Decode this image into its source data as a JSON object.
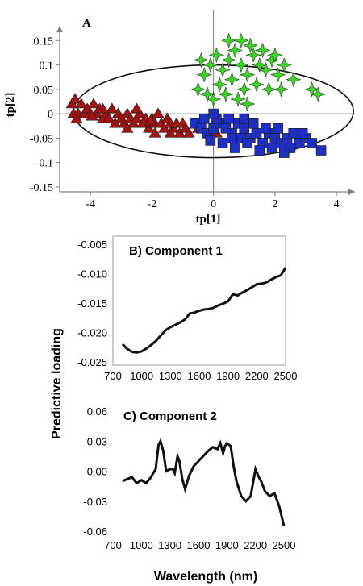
{
  "colors": {
    "class_triangle": "#a01414",
    "class_square": "#1f2fc0",
    "class_star": "#3fcf2a",
    "marker_edge": "#1a1a1a",
    "line": "#111111",
    "axis": "#808080"
  },
  "chart_data": [
    {
      "type": "scatter",
      "panel_label": "A",
      "xlabel": "tp[1]",
      "ylabel": "tp[2]",
      "xlim": [
        -5,
        4.6
      ],
      "ylim": [
        -0.16,
        0.2
      ],
      "x_ticks": [
        "-4",
        "-2",
        "0",
        "2",
        "4"
      ],
      "y_ticks": [
        "0.15",
        "0.1",
        "0.05",
        "0",
        "-0.05",
        "-0.1",
        "-0.15"
      ],
      "grid": false,
      "axes_through_origin": true,
      "confidence_ellipse": {
        "center": [
          0,
          0.005
        ],
        "semi_x": 4.55,
        "semi_y": 0.095
      },
      "series": [
        {
          "marker": "triangle",
          "color": "#a01414",
          "points": [
            [
              -4.6,
              0.02
            ],
            [
              -4.55,
              0.0
            ],
            [
              -4.5,
              0.03
            ],
            [
              -4.45,
              -0.01
            ],
            [
              -4.4,
              0.0
            ],
            [
              -4.3,
              0.02
            ],
            [
              -4.2,
              0.0
            ],
            [
              -4.1,
              0.01
            ],
            [
              -4.0,
              0.0
            ],
            [
              -3.9,
              0.02
            ],
            [
              -3.8,
              0.0
            ],
            [
              -3.7,
              0.01
            ],
            [
              -3.6,
              -0.01
            ],
            [
              -3.5,
              0.0
            ],
            [
              -3.4,
              -0.01
            ],
            [
              -3.3,
              0.01
            ],
            [
              -3.2,
              -0.02
            ],
            [
              -3.1,
              0.0
            ],
            [
              -3.0,
              -0.01
            ],
            [
              -2.9,
              -0.02
            ],
            [
              -2.8,
              0.0
            ],
            [
              -2.7,
              -0.01
            ],
            [
              -2.6,
              -0.02
            ],
            [
              -2.5,
              -0.01
            ],
            [
              -2.4,
              0.0
            ],
            [
              -2.3,
              -0.02
            ],
            [
              -2.2,
              -0.01
            ],
            [
              -2.1,
              -0.03
            ],
            [
              -2.0,
              -0.01
            ],
            [
              -1.9,
              -0.02
            ],
            [
              -1.8,
              0.0
            ],
            [
              -1.7,
              -0.02
            ],
            [
              -1.6,
              -0.03
            ],
            [
              -1.5,
              -0.01
            ],
            [
              -1.4,
              -0.02
            ],
            [
              -1.3,
              -0.03
            ],
            [
              -1.2,
              -0.02
            ],
            [
              -1.1,
              -0.04
            ],
            [
              -1.0,
              -0.02
            ],
            [
              -0.9,
              -0.03
            ],
            [
              -0.8,
              -0.04
            ],
            [
              -3.6,
              0.01
            ],
            [
              -2.8,
              -0.03
            ],
            [
              -2.5,
              0.01
            ],
            [
              -1.9,
              -0.04
            ],
            [
              -1.4,
              -0.04
            ],
            [
              -0.5,
              -0.03
            ],
            [
              0.1,
              -0.04
            ],
            [
              -3.95,
              -0.005
            ],
            [
              -2.05,
              -0.015
            ]
          ]
        },
        {
          "marker": "square",
          "color": "#1f2fc0",
          "points": [
            [
              -0.6,
              -0.02
            ],
            [
              -0.4,
              -0.03
            ],
            [
              -0.2,
              -0.04
            ],
            [
              0.0,
              -0.03
            ],
            [
              0.2,
              -0.02
            ],
            [
              0.4,
              -0.03
            ],
            [
              0.6,
              -0.04
            ],
            [
              0.8,
              -0.02
            ],
            [
              1.0,
              -0.03
            ],
            [
              1.2,
              -0.05
            ],
            [
              1.4,
              -0.04
            ],
            [
              1.6,
              -0.06
            ],
            [
              1.8,
              -0.04
            ],
            [
              2.0,
              -0.05
            ],
            [
              2.2,
              -0.06
            ],
            [
              2.4,
              -0.05
            ],
            [
              2.6,
              -0.04
            ],
            [
              2.8,
              -0.06
            ],
            [
              3.0,
              -0.05
            ],
            [
              3.2,
              -0.06
            ],
            [
              3.5,
              -0.075
            ],
            [
              -0.3,
              -0.01
            ],
            [
              0.1,
              -0.01
            ],
            [
              0.5,
              -0.01
            ],
            [
              0.9,
              -0.05
            ],
            [
              1.3,
              -0.02
            ],
            [
              1.7,
              -0.03
            ],
            [
              2.1,
              -0.03
            ],
            [
              2.5,
              -0.07
            ],
            [
              2.9,
              -0.04
            ],
            [
              0.3,
              -0.06
            ],
            [
              0.7,
              -0.07
            ],
            [
              1.1,
              -0.06
            ],
            [
              1.5,
              -0.075
            ],
            [
              1.9,
              -0.07
            ],
            [
              0.0,
              0.0
            ],
            [
              -0.1,
              -0.055
            ],
            [
              2.3,
              -0.08
            ],
            [
              1.0,
              -0.01
            ],
            [
              0.6,
              -0.05
            ]
          ]
        },
        {
          "marker": "star",
          "color": "#3fcf2a",
          "points": [
            [
              -0.5,
              0.05
            ],
            [
              -0.3,
              0.08
            ],
            [
              -0.1,
              0.1
            ],
            [
              0.1,
              0.12
            ],
            [
              0.3,
              0.09
            ],
            [
              0.5,
              0.11
            ],
            [
              0.7,
              0.13
            ],
            [
              0.9,
              0.1
            ],
            [
              1.1,
              0.08
            ],
            [
              1.3,
              0.12
            ],
            [
              1.5,
              0.1
            ],
            [
              1.7,
              0.09
            ],
            [
              1.9,
              0.11
            ],
            [
              2.1,
              0.08
            ],
            [
              2.3,
              0.1
            ],
            [
              0.2,
              0.06
            ],
            [
              0.6,
              0.07
            ],
            [
              1.0,
              0.05
            ],
            [
              1.4,
              0.06
            ],
            [
              1.8,
              0.05
            ],
            [
              0.0,
              0.03
            ],
            [
              0.4,
              0.04
            ],
            [
              0.8,
              0.03
            ],
            [
              -0.2,
              0.04
            ],
            [
              1.2,
              0.14
            ],
            [
              1.6,
              0.13
            ],
            [
              2.0,
              0.12
            ],
            [
              2.6,
              0.07
            ],
            [
              3.2,
              0.05
            ],
            [
              3.4,
              0.04
            ],
            [
              0.5,
              0.15
            ],
            [
              0.9,
              0.15
            ],
            [
              -0.4,
              0.11
            ],
            [
              2.2,
              0.05
            ],
            [
              1.1,
              0.02
            ]
          ]
        }
      ]
    },
    {
      "type": "line",
      "title": "B) Component 1",
      "xlim": [
        700,
        2500
      ],
      "ylim": [
        -0.025,
        -0.005
      ],
      "x_ticks": [
        "700",
        "1000",
        "1300",
        "1600",
        "1900",
        "2200",
        "2500"
      ],
      "y_ticks": [
        "-0.005",
        "-0.010",
        "-0.015",
        "-0.020",
        "-0.025"
      ],
      "series": [
        {
          "x": [
            800,
            850,
            900,
            950,
            1000,
            1050,
            1100,
            1150,
            1200,
            1250,
            1300,
            1350,
            1400,
            1450,
            1500,
            1550,
            1600,
            1650,
            1700,
            1750,
            1800,
            1850,
            1900,
            1950,
            2000,
            2050,
            2100,
            2150,
            2200,
            2250,
            2300,
            2350,
            2400,
            2450,
            2500
          ],
          "y": [
            -0.022,
            -0.0228,
            -0.0233,
            -0.0234,
            -0.0232,
            -0.0227,
            -0.0221,
            -0.0214,
            -0.0205,
            -0.0196,
            -0.0191,
            -0.0187,
            -0.0183,
            -0.0178,
            -0.0168,
            -0.0166,
            -0.0163,
            -0.0161,
            -0.016,
            -0.0158,
            -0.0154,
            -0.0151,
            -0.0147,
            -0.0135,
            -0.0137,
            -0.0132,
            -0.0128,
            -0.0123,
            -0.0118,
            -0.0117,
            -0.0115,
            -0.011,
            -0.0106,
            -0.0103,
            -0.009
          ]
        }
      ]
    },
    {
      "type": "line",
      "title": "C) Component 2",
      "xlabel": "Wavelength (nm)",
      "xlim": [
        700,
        2500
      ],
      "ylim": [
        -0.06,
        0.06
      ],
      "x_ticks": [
        "700",
        "1000",
        "1300",
        "1600",
        "1900",
        "2200",
        "2500"
      ],
      "y_ticks": [
        "0.06",
        "0.03",
        "0.00",
        "-0.03",
        "-0.06"
      ],
      "series": [
        {
          "x": [
            800,
            850,
            900,
            950,
            1000,
            1050,
            1100,
            1150,
            1180,
            1200,
            1230,
            1260,
            1300,
            1330,
            1350,
            1380,
            1400,
            1430,
            1460,
            1500,
            1550,
            1600,
            1650,
            1700,
            1750,
            1800,
            1830,
            1860,
            1880,
            1900,
            1940,
            1970,
            2000,
            2050,
            2100,
            2150,
            2200,
            2230,
            2260,
            2300,
            2350,
            2400,
            2450,
            2500
          ],
          "y": [
            -0.01,
            -0.008,
            -0.006,
            -0.012,
            -0.009,
            -0.012,
            -0.006,
            0.002,
            0.026,
            0.03,
            0.02,
            0.0,
            0.002,
            0.002,
            -0.002,
            0.015,
            0.01,
            -0.008,
            -0.018,
            -0.005,
            0.005,
            0.01,
            0.015,
            0.02,
            0.024,
            0.022,
            0.028,
            0.018,
            0.025,
            0.028,
            0.025,
            0.005,
            -0.01,
            -0.025,
            -0.03,
            -0.025,
            0.002,
            -0.005,
            -0.01,
            -0.02,
            -0.025,
            -0.022,
            -0.035,
            -0.055
          ]
        }
      ]
    }
  ],
  "shared_ylabel": "Predictive loading"
}
